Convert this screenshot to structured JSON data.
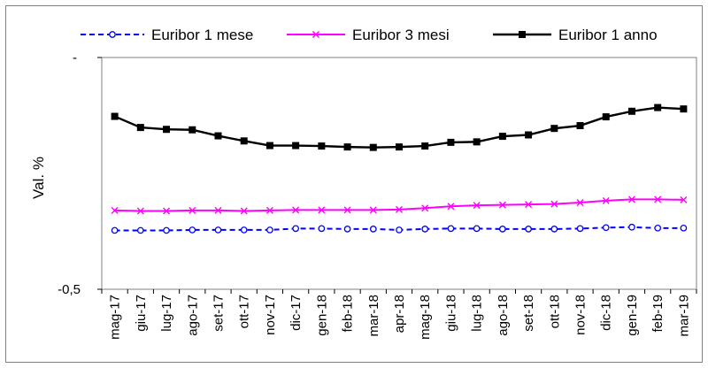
{
  "chart_data": {
    "type": "line",
    "ylabel": "Val. %",
    "xlabel": "",
    "title": "",
    "ylim": [
      -0.5,
      0
    ],
    "ytick_labels": [
      "-",
      "-0,5"
    ],
    "grid": false,
    "legend_position": "top",
    "categories": [
      "mag-17",
      "giu-17",
      "lug-17",
      "ago-17",
      "set-17",
      "ott-17",
      "nov-17",
      "dic-17",
      "gen-18",
      "feb-18",
      "mar-18",
      "apr-18",
      "mag-18",
      "giu-18",
      "lug-18",
      "ago-18",
      "set-18",
      "ott-18",
      "nov-18",
      "dic-18",
      "gen-19",
      "feb-19",
      "mar-19"
    ],
    "series": [
      {
        "name": "Euribor 1 mese",
        "color": "#0000ff",
        "line_style": "dashed",
        "marker": "circle",
        "values": [
          -0.373,
          -0.373,
          -0.373,
          -0.372,
          -0.372,
          -0.372,
          -0.372,
          -0.369,
          -0.369,
          -0.37,
          -0.37,
          -0.372,
          -0.37,
          -0.369,
          -0.369,
          -0.37,
          -0.37,
          -0.37,
          -0.369,
          -0.367,
          -0.366,
          -0.368,
          -0.368
        ]
      },
      {
        "name": "Euribor 3 mesi",
        "color": "#ff00ff",
        "line_style": "solid",
        "marker": "x",
        "values": [
          -0.33,
          -0.331,
          -0.331,
          -0.33,
          -0.33,
          -0.331,
          -0.33,
          -0.329,
          -0.329,
          -0.329,
          -0.329,
          -0.328,
          -0.325,
          -0.321,
          -0.319,
          -0.318,
          -0.317,
          -0.316,
          -0.313,
          -0.309,
          -0.306,
          -0.306,
          -0.307
        ]
      },
      {
        "name": "Euribor 1 anno",
        "color": "#000000",
        "line_style": "solid",
        "marker": "square",
        "values": [
          -0.127,
          -0.151,
          -0.155,
          -0.156,
          -0.169,
          -0.18,
          -0.19,
          -0.19,
          -0.191,
          -0.193,
          -0.194,
          -0.193,
          -0.191,
          -0.183,
          -0.182,
          -0.17,
          -0.167,
          -0.153,
          -0.147,
          -0.128,
          -0.116,
          -0.108,
          -0.111
        ]
      }
    ]
  }
}
